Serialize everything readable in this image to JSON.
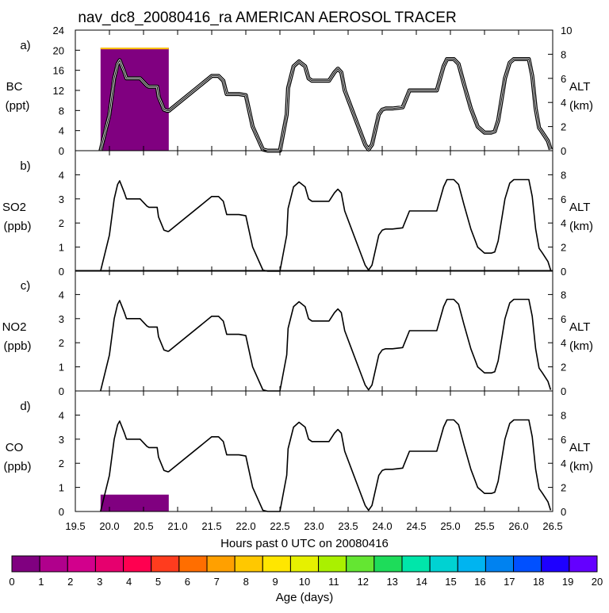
{
  "chart_data": {
    "type": "multi-panel",
    "title": "nav_dc8_20080416_ra AMERICAN AEROSOL TRACER",
    "xlabel": "Hours past 0 UTC on 20080416",
    "xlim": [
      19.5,
      26.5
    ],
    "x_ticks": [
      "19.5",
      "20.0",
      "20.5",
      "21.0",
      "21.5",
      "22.0",
      "22.5",
      "23.0",
      "23.5",
      "24.0",
      "24.5",
      "25.0",
      "25.5",
      "26.0",
      "26.5"
    ],
    "right_axis": {
      "label": "ALT",
      "unit": "(km)"
    },
    "panels": [
      {
        "id": "a)",
        "ylabel": "BC",
        "yunit": "(ppt)",
        "ylim": [
          0,
          24
        ],
        "y_ticks": [
          "0",
          "4",
          "8",
          "12",
          "16",
          "20",
          "24"
        ],
        "alt_lim": [
          0,
          10
        ],
        "alt_ticks": [
          "0",
          "2",
          "4",
          "6",
          "8",
          "10"
        ]
      },
      {
        "id": "b)",
        "ylabel": "SO2",
        "yunit": "(ppb)",
        "ylim": [
          0,
          5
        ],
        "y_ticks": [
          "0",
          "1",
          "2",
          "3",
          "4"
        ],
        "alt_lim": [
          0,
          10
        ],
        "alt_ticks": [
          "0",
          "2",
          "4",
          "6",
          "8"
        ]
      },
      {
        "id": "c)",
        "ylabel": "NO2",
        "yunit": "(ppb)",
        "ylim": [
          0,
          5
        ],
        "y_ticks": [
          "0",
          "1",
          "2",
          "3",
          "4"
        ],
        "alt_lim": [
          0,
          10
        ],
        "alt_ticks": [
          "0",
          "2",
          "4",
          "6",
          "8"
        ]
      },
      {
        "id": "d)",
        "ylabel": "CO",
        "yunit": "(ppb)",
        "ylim": [
          0,
          5
        ],
        "y_ticks": [
          "0",
          "1",
          "2",
          "3",
          "4"
        ],
        "alt_lim": [
          0,
          10
        ],
        "alt_ticks": [
          "0",
          "2",
          "4",
          "6",
          "8"
        ]
      }
    ],
    "altitude_series": {
      "x": [
        19.87,
        20.0,
        20.07,
        20.12,
        20.15,
        20.22,
        20.25,
        20.35,
        20.45,
        20.55,
        20.58,
        20.7,
        20.72,
        20.8,
        20.85,
        20.87,
        21.5,
        21.6,
        21.67,
        21.72,
        21.82,
        21.9,
        22.0,
        22.1,
        22.25,
        22.32,
        22.4,
        22.5,
        22.6,
        22.62,
        22.7,
        22.78,
        22.87,
        22.92,
        22.97,
        23.03,
        23.12,
        23.22,
        23.3,
        23.35,
        23.4,
        23.45,
        23.55,
        23.65,
        23.75,
        23.8,
        23.85,
        23.95,
        24.0,
        24.05,
        24.15,
        24.3,
        24.4,
        24.45,
        24.6,
        24.8,
        24.9,
        24.95,
        25.05,
        25.12,
        25.2,
        25.3,
        25.4,
        25.5,
        25.6,
        25.65,
        25.7,
        25.8,
        25.87,
        25.93,
        26.05,
        26.15,
        26.2,
        26.25,
        26.3,
        26.35,
        26.43,
        26.47
      ],
      "alt": [
        0.0,
        3.0,
        6.0,
        7.2,
        7.5,
        6.5,
        6.0,
        6.0,
        6.0,
        5.4,
        5.3,
        5.3,
        4.5,
        3.4,
        3.3,
        3.3,
        6.2,
        6.2,
        5.8,
        4.7,
        4.7,
        4.7,
        4.6,
        2.0,
        0.1,
        0.0,
        0.0,
        0.0,
        3.0,
        5.2,
        7.0,
        7.4,
        7.0,
        6.0,
        5.8,
        5.8,
        5.8,
        5.8,
        6.5,
        6.8,
        6.5,
        5.0,
        3.5,
        2.0,
        0.5,
        0.1,
        0.5,
        3.0,
        3.4,
        3.5,
        3.5,
        3.6,
        5.0,
        5.0,
        5.0,
        5.0,
        7.0,
        7.6,
        7.6,
        7.2,
        5.5,
        3.5,
        2.0,
        1.5,
        1.5,
        1.6,
        2.5,
        6.0,
        7.3,
        7.6,
        7.6,
        7.6,
        6.2,
        3.5,
        1.9,
        1.5,
        0.8,
        0.1
      ]
    },
    "tracer_bars": [
      {
        "panel": 0,
        "x0": 19.87,
        "x1": 20.87,
        "value": 20.5,
        "age_days": 0.3
      },
      {
        "panel": 3,
        "x0": 19.87,
        "x1": 20.87,
        "value": 0.7,
        "age_days": 0.3
      }
    ],
    "colorbar": {
      "label": "Age (days)",
      "ticks": [
        "0",
        "1",
        "2",
        "3",
        "4",
        "5",
        "6",
        "7",
        "8",
        "9",
        "10",
        "11",
        "12",
        "13",
        "14",
        "15",
        "16",
        "17",
        "18",
        "19",
        "20"
      ],
      "colors": [
        "#800080",
        "#b0008c",
        "#d2008c",
        "#e6006e",
        "#ff0050",
        "#ff3c1e",
        "#ff6e00",
        "#ffa000",
        "#ffc800",
        "#ffe600",
        "#e6f000",
        "#aaf000",
        "#64e632",
        "#1edc5a",
        "#00e6aa",
        "#00d2d2",
        "#00b4f0",
        "#0082f0",
        "#0050ff",
        "#1e00ff",
        "#6400ff"
      ]
    }
  }
}
